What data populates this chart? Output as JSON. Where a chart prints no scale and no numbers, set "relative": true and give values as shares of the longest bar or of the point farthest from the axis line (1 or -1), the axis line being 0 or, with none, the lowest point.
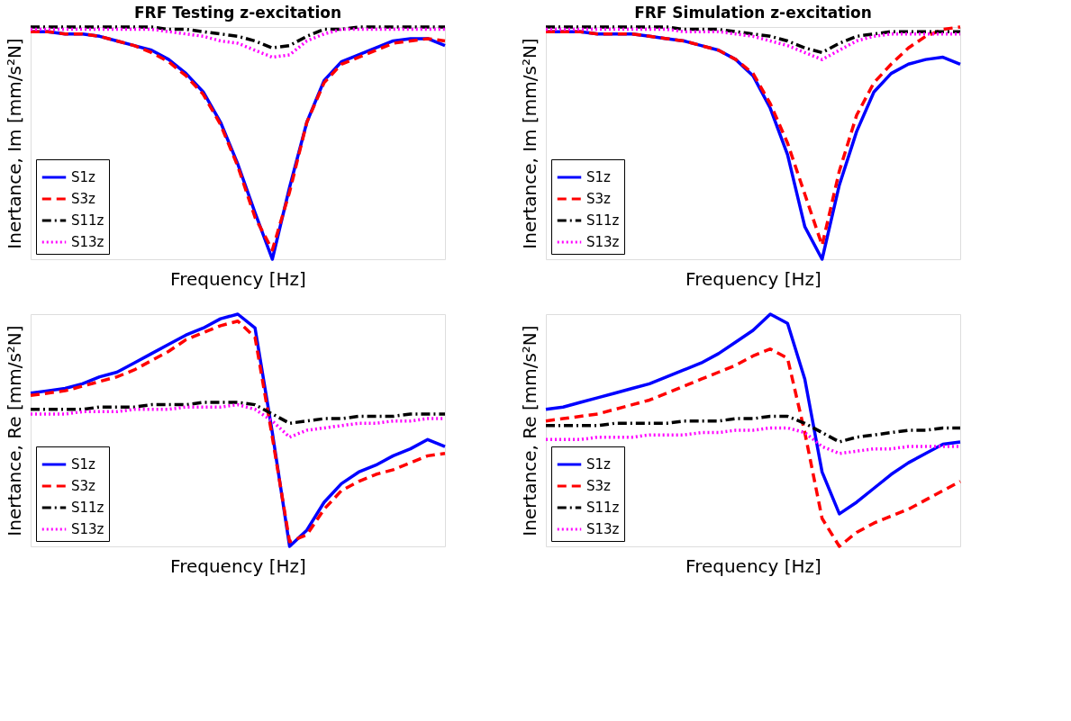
{
  "chart_data": [
    {
      "type": "line",
      "title": "FRF Testing z-excitation",
      "xlabel": "Frequency [Hz]",
      "ylabel": "Inertance, Im [mm/s²N]",
      "relative": true,
      "tick_labels": false,
      "grid": false,
      "legend": "bottom left",
      "categories": [
        null,
        null,
        null,
        null,
        null,
        null,
        null,
        null,
        null,
        null,
        null,
        null,
        null,
        null,
        null,
        null,
        null,
        null,
        null,
        null,
        null,
        null,
        null,
        null,
        null
      ],
      "series": [
        {
          "name": "S1z",
          "color": "#0000ff",
          "line_style": "solid",
          "values": [
            0.98,
            0.98,
            0.97,
            0.97,
            0.96,
            0.94,
            0.92,
            0.9,
            0.86,
            0.8,
            0.72,
            0.59,
            0.41,
            0.2,
            0,
            0.31,
            0.59,
            0.77,
            0.85,
            0.88,
            0.91,
            0.94,
            0.95,
            0.95,
            0.92
          ]
        },
        {
          "name": "S3z",
          "color": "#ff0000",
          "line_style": "dashed",
          "values": [
            0.98,
            0.98,
            0.97,
            0.97,
            0.96,
            0.94,
            0.92,
            0.89,
            0.85,
            0.79,
            0.71,
            0.58,
            0.4,
            0.18,
            0.04,
            0.29,
            0.59,
            0.76,
            0.84,
            0.87,
            0.9,
            0.93,
            0.94,
            0.95,
            0.94
          ]
        },
        {
          "name": "S11z",
          "color": "#000000",
          "line_style": "dashdot",
          "values": [
            1,
            1,
            1,
            1,
            1,
            1,
            1,
            1,
            0.99,
            0.99,
            0.98,
            0.97,
            0.96,
            0.94,
            0.91,
            0.92,
            0.96,
            0.99,
            0.99,
            1,
            1,
            1,
            1,
            1,
            1
          ]
        },
        {
          "name": "S13z",
          "color": "#ff00ff",
          "line_style": "dotted",
          "values": [
            0.99,
            0.99,
            0.99,
            0.99,
            0.99,
            0.99,
            0.99,
            0.99,
            0.98,
            0.97,
            0.96,
            0.94,
            0.93,
            0.9,
            0.87,
            0.88,
            0.94,
            0.97,
            0.99,
            0.99,
            0.99,
            0.99,
            0.99,
            0.99,
            0.99
          ]
        }
      ]
    },
    {
      "type": "line",
      "title": "FRF Simulation z-excitation",
      "xlabel": "Frequency [Hz]",
      "ylabel": "Inertance, Im [mm/s²N]",
      "relative": true,
      "tick_labels": false,
      "grid": false,
      "legend": "bottom left",
      "categories": [
        null,
        null,
        null,
        null,
        null,
        null,
        null,
        null,
        null,
        null,
        null,
        null,
        null,
        null,
        null,
        null,
        null,
        null,
        null,
        null,
        null,
        null,
        null,
        null,
        null
      ],
      "series": [
        {
          "name": "S1z",
          "color": "#0000ff",
          "line_style": "solid",
          "values": [
            0.98,
            0.98,
            0.98,
            0.97,
            0.97,
            0.97,
            0.96,
            0.95,
            0.94,
            0.92,
            0.9,
            0.86,
            0.79,
            0.65,
            0.45,
            0.14,
            0,
            0.32,
            0.55,
            0.72,
            0.8,
            0.84,
            0.86,
            0.87,
            0.84
          ]
        },
        {
          "name": "S3z",
          "color": "#ff0000",
          "line_style": "dashed",
          "values": [
            0.98,
            0.98,
            0.98,
            0.97,
            0.97,
            0.97,
            0.96,
            0.95,
            0.94,
            0.92,
            0.9,
            0.86,
            0.8,
            0.67,
            0.5,
            0.28,
            0.06,
            0.38,
            0.62,
            0.76,
            0.84,
            0.91,
            0.96,
            0.99,
            1
          ]
        },
        {
          "name": "S11z",
          "color": "#000000",
          "line_style": "dashdot",
          "values": [
            1,
            1,
            1,
            1,
            1,
            1,
            1,
            1,
            0.99,
            0.99,
            0.99,
            0.98,
            0.97,
            0.96,
            0.94,
            0.91,
            0.89,
            0.93,
            0.96,
            0.97,
            0.98,
            0.98,
            0.98,
            0.98,
            0.98
          ]
        },
        {
          "name": "S13z",
          "color": "#ff00ff",
          "line_style": "dotted",
          "values": [
            0.99,
            0.99,
            0.99,
            0.99,
            0.99,
            0.99,
            0.99,
            0.99,
            0.98,
            0.98,
            0.98,
            0.97,
            0.96,
            0.94,
            0.92,
            0.89,
            0.86,
            0.9,
            0.94,
            0.96,
            0.97,
            0.97,
            0.97,
            0.97,
            0.97
          ]
        }
      ]
    },
    {
      "type": "line",
      "xlabel": "Frequency [Hz]",
      "ylabel": "Inertance, Re [mm/s²N]",
      "relative": true,
      "tick_labels": false,
      "grid": false,
      "legend": "bottom left",
      "categories": [
        null,
        null,
        null,
        null,
        null,
        null,
        null,
        null,
        null,
        null,
        null,
        null,
        null,
        null,
        null,
        null,
        null,
        null,
        null,
        null,
        null,
        null,
        null,
        null,
        null
      ],
      "series": [
        {
          "name": "S1z",
          "color": "#0000ff",
          "line_style": "solid",
          "values": [
            0.66,
            0.67,
            0.68,
            0.7,
            0.73,
            0.75,
            0.79,
            0.83,
            0.87,
            0.91,
            0.94,
            0.98,
            1,
            0.94,
            0.49,
            0,
            0.07,
            0.19,
            0.27,
            0.32,
            0.35,
            0.39,
            0.42,
            0.46,
            0.43
          ]
        },
        {
          "name": "S3z",
          "color": "#ff0000",
          "line_style": "dashed",
          "values": [
            0.65,
            0.66,
            0.67,
            0.69,
            0.71,
            0.73,
            0.76,
            0.8,
            0.84,
            0.89,
            0.92,
            0.95,
            0.97,
            0.9,
            0.47,
            0.02,
            0.05,
            0.16,
            0.24,
            0.28,
            0.31,
            0.33,
            0.36,
            0.39,
            0.4
          ]
        },
        {
          "name": "S11z",
          "color": "#000000",
          "line_style": "dashdot",
          "values": [
            0.59,
            0.59,
            0.59,
            0.59,
            0.6,
            0.6,
            0.6,
            0.61,
            0.61,
            0.61,
            0.62,
            0.62,
            0.62,
            0.61,
            0.57,
            0.53,
            0.54,
            0.55,
            0.55,
            0.56,
            0.56,
            0.56,
            0.57,
            0.57,
            0.57
          ]
        },
        {
          "name": "S13z",
          "color": "#ff00ff",
          "line_style": "dotted",
          "values": [
            0.57,
            0.57,
            0.57,
            0.58,
            0.58,
            0.58,
            0.59,
            0.59,
            0.59,
            0.6,
            0.6,
            0.6,
            0.61,
            0.59,
            0.54,
            0.47,
            0.5,
            0.51,
            0.52,
            0.53,
            0.53,
            0.54,
            0.54,
            0.55,
            0.55
          ]
        }
      ]
    },
    {
      "type": "line",
      "xlabel": "Frequency [Hz]",
      "ylabel": "Inertance, Re [mm/s²N]",
      "relative": true,
      "tick_labels": false,
      "grid": false,
      "legend": "bottom left",
      "categories": [
        null,
        null,
        null,
        null,
        null,
        null,
        null,
        null,
        null,
        null,
        null,
        null,
        null,
        null,
        null,
        null,
        null,
        null,
        null,
        null,
        null,
        null,
        null,
        null,
        null
      ],
      "series": [
        {
          "name": "S1z",
          "color": "#0000ff",
          "line_style": "solid",
          "values": [
            0.59,
            0.6,
            0.62,
            0.64,
            0.66,
            0.68,
            0.7,
            0.73,
            0.76,
            0.79,
            0.83,
            0.88,
            0.93,
            1,
            0.96,
            0.72,
            0.32,
            0.14,
            0.19,
            0.25,
            0.31,
            0.36,
            0.4,
            0.44,
            0.45
          ]
        },
        {
          "name": "S3z",
          "color": "#ff0000",
          "line_style": "dashed",
          "values": [
            0.54,
            0.55,
            0.56,
            0.57,
            0.59,
            0.61,
            0.63,
            0.66,
            0.69,
            0.72,
            0.75,
            0.78,
            0.82,
            0.85,
            0.81,
            0.49,
            0.12,
            0,
            0.06,
            0.1,
            0.13,
            0.16,
            0.2,
            0.24,
            0.28
          ]
        },
        {
          "name": "S11z",
          "color": "#000000",
          "line_style": "dashdot",
          "values": [
            0.52,
            0.52,
            0.52,
            0.52,
            0.53,
            0.53,
            0.53,
            0.53,
            0.54,
            0.54,
            0.54,
            0.55,
            0.55,
            0.56,
            0.56,
            0.53,
            0.49,
            0.45,
            0.47,
            0.48,
            0.49,
            0.5,
            0.5,
            0.51,
            0.51
          ]
        },
        {
          "name": "S13z",
          "color": "#ff00ff",
          "line_style": "dotted",
          "values": [
            0.46,
            0.46,
            0.46,
            0.47,
            0.47,
            0.47,
            0.48,
            0.48,
            0.48,
            0.49,
            0.49,
            0.5,
            0.5,
            0.51,
            0.51,
            0.49,
            0.43,
            0.4,
            0.41,
            0.42,
            0.42,
            0.43,
            0.43,
            0.43,
            0.43
          ]
        }
      ]
    }
  ]
}
